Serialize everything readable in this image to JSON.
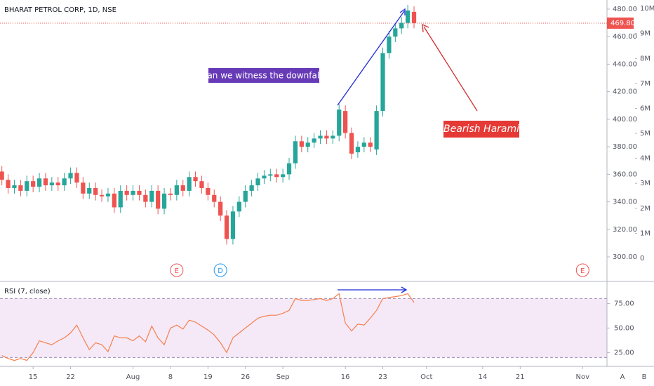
{
  "chart_data": {
    "type": "candlestick",
    "title": "BHARAT PETROL CORP, 1D, NSE",
    "x": [
      0,
      1,
      2,
      3,
      4,
      5,
      6,
      7,
      8,
      9,
      10,
      11,
      12,
      13,
      14,
      15,
      16,
      17,
      18,
      19,
      20,
      21,
      22,
      23,
      24,
      25,
      26,
      27,
      28,
      29,
      30,
      31,
      32,
      33,
      34,
      35,
      36,
      37,
      38,
      39,
      40,
      41,
      42,
      43,
      44,
      45,
      46,
      47,
      48,
      49,
      50,
      51,
      52,
      53,
      54,
      55,
      56,
      57,
      58,
      59,
      60,
      61,
      62,
      63,
      64,
      65,
      66
    ],
    "open": [
      362,
      356,
      350,
      352,
      348,
      355,
      351,
      357,
      352,
      354,
      352,
      357,
      361,
      354,
      346,
      350,
      345,
      344,
      346,
      336,
      348,
      345,
      348,
      345,
      340,
      348,
      335,
      346,
      345,
      352,
      348,
      358,
      355,
      350,
      345,
      340,
      330,
      313,
      333,
      340,
      348,
      352,
      357,
      359,
      360,
      358,
      360,
      368,
      384,
      380,
      383,
      386,
      388,
      386,
      388,
      406,
      390,
      376,
      380,
      383,
      378,
      406,
      448,
      460,
      466,
      470,
      478
    ],
    "high": [
      366,
      360,
      356,
      356,
      359,
      359,
      361,
      361,
      358,
      358,
      361,
      365,
      365,
      358,
      354,
      354,
      349,
      350,
      350,
      352,
      352,
      352,
      352,
      349,
      352,
      352,
      350,
      350,
      356,
      356,
      362,
      362,
      359,
      354,
      349,
      344,
      334,
      337,
      344,
      352,
      356,
      361,
      363,
      364,
      364,
      364,
      372,
      388,
      388,
      387,
      390,
      392,
      392,
      392,
      411,
      410,
      394,
      384,
      387,
      387,
      410,
      452,
      464,
      470,
      474,
      483,
      482
    ],
    "low": [
      352,
      346,
      346,
      344,
      344,
      347,
      347,
      348,
      348,
      348,
      348,
      353,
      350,
      342,
      342,
      341,
      340,
      340,
      332,
      332,
      341,
      341,
      341,
      336,
      336,
      331,
      331,
      341,
      341,
      344,
      344,
      351,
      346,
      341,
      336,
      326,
      309,
      309,
      329,
      336,
      344,
      348,
      353,
      355,
      354,
      354,
      356,
      364,
      376,
      376,
      379,
      382,
      382,
      382,
      384,
      386,
      371,
      372,
      376,
      376,
      374,
      402,
      444,
      456,
      462,
      466,
      466
    ],
    "close": [
      356,
      350,
      352,
      348,
      355,
      351,
      357,
      352,
      354,
      352,
      357,
      361,
      354,
      346,
      350,
      345,
      344,
      346,
      336,
      348,
      345,
      348,
      345,
      340,
      348,
      335,
      346,
      345,
      352,
      348,
      358,
      355,
      350,
      345,
      340,
      330,
      313,
      333,
      340,
      348,
      352,
      357,
      359,
      360,
      358,
      360,
      368,
      384,
      380,
      383,
      386,
      388,
      386,
      388,
      407,
      390,
      375,
      380,
      383,
      380,
      406,
      448,
      460,
      466,
      470,
      479,
      469.8
    ],
    "up_color": "#26a69a",
    "down_color": "#ef5350",
    "xlim": [
      -0.3,
      96.9
    ],
    "xticks": [
      {
        "value": 5,
        "label": "15"
      },
      {
        "value": 11,
        "label": "22"
      },
      {
        "value": 21,
        "label": "Aug"
      },
      {
        "value": 27,
        "label": "8"
      },
      {
        "value": 33,
        "label": "19"
      },
      {
        "value": 39,
        "label": "26"
      },
      {
        "value": 45,
        "label": "Sep"
      },
      {
        "value": 55,
        "label": "16"
      },
      {
        "value": 61,
        "label": "23"
      },
      {
        "value": 68,
        "label": "Oct"
      },
      {
        "value": 77,
        "label": "14"
      },
      {
        "value": 83,
        "label": "21"
      },
      {
        "value": 93,
        "label": "Nov"
      }
    ],
    "ylim": [
      282.7,
      486.6
    ],
    "yticks": [
      {
        "value": 300,
        "label": "300.00"
      },
      {
        "value": 320,
        "label": "320.00"
      },
      {
        "value": 340,
        "label": "340.00"
      },
      {
        "value": 360,
        "label": "360.00"
      },
      {
        "value": 380,
        "label": "380.00"
      },
      {
        "value": 400,
        "label": "400.00"
      },
      {
        "value": 420,
        "label": "420.00"
      },
      {
        "value": 440,
        "label": "440.00"
      },
      {
        "value": 460,
        "label": "460.00"
      },
      {
        "value": 480,
        "label": "480.00"
      }
    ],
    "y2lim": [
      -900000,
      10340000
    ],
    "y2ticks": [
      {
        "value": 0,
        "label": "0"
      },
      {
        "value": 1000000,
        "label": "1M"
      },
      {
        "value": 2000000,
        "label": "2M"
      },
      {
        "value": 3000000,
        "label": "3M"
      },
      {
        "value": 4000000,
        "label": "4M"
      },
      {
        "value": 5000000,
        "label": "5M"
      },
      {
        "value": 6000000,
        "label": "6M"
      },
      {
        "value": 7000000,
        "label": "7M"
      },
      {
        "value": 8000000,
        "label": "8M"
      },
      {
        "value": 9000000,
        "label": "9M"
      },
      {
        "value": 10000000,
        "label": "10M"
      }
    ],
    "last_price": {
      "value": 469.8,
      "label": "469.80"
    },
    "events": [
      {
        "label": "E",
        "x": 28,
        "color": "#ef5350"
      },
      {
        "label": "D",
        "x": 35,
        "color": "#2196f3"
      },
      {
        "label": "E",
        "x": 93,
        "color": "#ef5350"
      }
    ],
    "annotations": [
      "Can we witness the downfall?",
      "Bearish Harami"
    ],
    "rsi": {
      "name": "RSI (7, close)",
      "color": "#f57f4d",
      "values": [
        22,
        19,
        17,
        19,
        17,
        25,
        37,
        35,
        33,
        37,
        40,
        45,
        53,
        40,
        28,
        35,
        33,
        26,
        42,
        40,
        40,
        37,
        42,
        36,
        52,
        40,
        33,
        50,
        53,
        49,
        58,
        56,
        52,
        48,
        43,
        35,
        25,
        40,
        45,
        50,
        55,
        60,
        62,
        63,
        63,
        65,
        68,
        80,
        78,
        78,
        79,
        80,
        78,
        80,
        85,
        55,
        47,
        54,
        53,
        60,
        68,
        80,
        81,
        82,
        83,
        85,
        76
      ],
      "ylim": [
        11,
        96
      ],
      "yticks": [
        {
          "value": 25,
          "label": "25.00"
        },
        {
          "value": 50,
          "label": "50.00"
        },
        {
          "value": 75,
          "label": "75.00"
        }
      ],
      "band": [
        20,
        80
      ]
    },
    "scale_buttons": [
      "A",
      "B"
    ]
  }
}
